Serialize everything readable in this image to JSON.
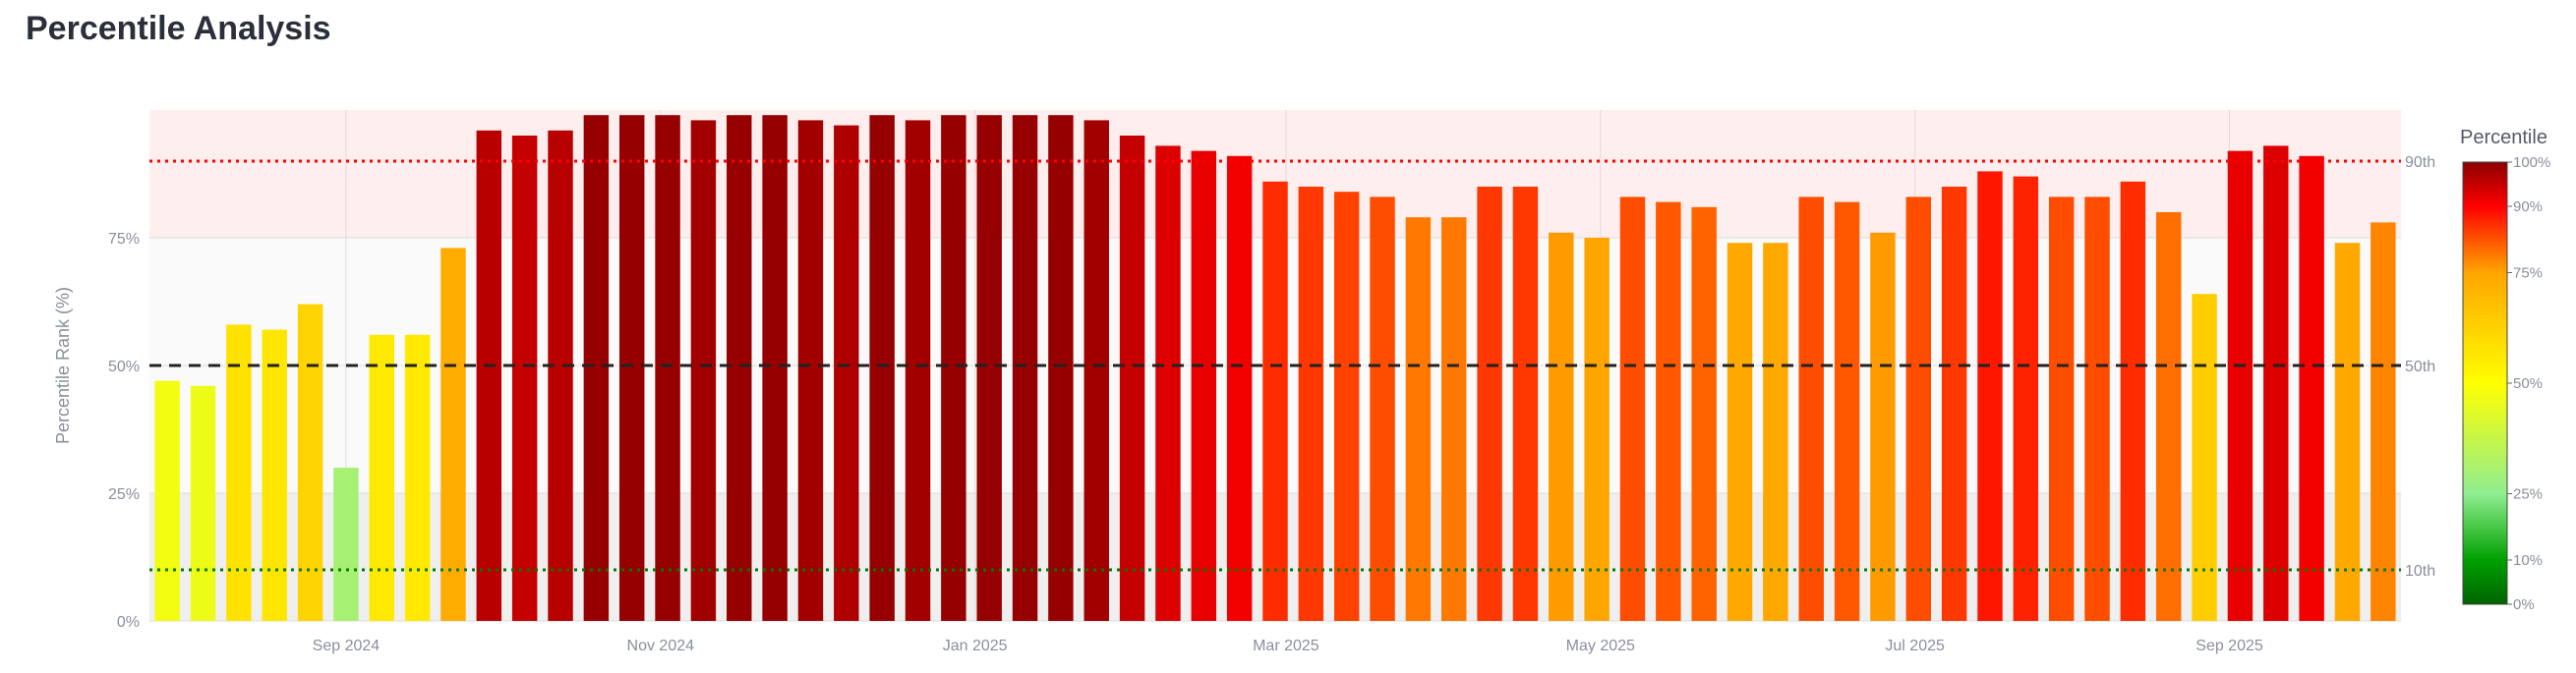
{
  "page": {
    "title": "Percentile Analysis"
  },
  "chart_data": {
    "type": "bar",
    "title": "Percentile Analysis",
    "xlabel": "",
    "ylabel": "Percentile Rank (%)",
    "ylim": [
      0,
      100
    ],
    "y_ticks": [
      0,
      25,
      50,
      75
    ],
    "y_tick_labels": [
      "0%",
      "25%",
      "50%",
      "75%"
    ],
    "x_ticks": [
      {
        "label": "Sep 2024",
        "index": 5
      },
      {
        "label": "Nov 2024",
        "index": 13.8
      },
      {
        "label": "Jan 2025",
        "index": 22.6
      },
      {
        "label": "Mar 2025",
        "index": 31.3
      },
      {
        "label": "May 2025",
        "index": 40.1
      },
      {
        "label": "Jul 2025",
        "index": 48.9
      },
      {
        "label": "Sep 2025",
        "index": 57.7
      }
    ],
    "values": [
      47,
      46,
      58,
      57,
      62,
      30,
      56,
      56,
      73,
      96,
      95,
      96,
      99,
      99,
      99,
      98,
      99,
      99,
      98,
      97,
      99,
      98,
      99,
      99,
      99,
      99,
      98,
      95,
      93,
      92,
      91,
      86,
      85,
      84,
      83,
      79,
      79,
      85,
      85,
      76,
      75,
      83,
      82,
      81,
      74,
      74,
      83,
      82,
      76,
      83,
      85,
      88,
      87,
      83,
      83,
      86,
      80,
      64,
      92,
      93,
      91,
      74,
      78
    ],
    "reference_lines": [
      {
        "label": "90th",
        "value": 90,
        "color": "#ff0000",
        "style": "dotted"
      },
      {
        "label": "50th",
        "value": 50,
        "color": "#222222",
        "style": "dashed"
      },
      {
        "label": "10th",
        "value": 10,
        "color": "#007a00",
        "style": "dotted"
      }
    ],
    "bands": [
      {
        "from": 75,
        "to": 100,
        "color": "#ffeeee"
      },
      {
        "from": 0,
        "to": 25,
        "color": "#efefef"
      }
    ],
    "grid": true,
    "legend": "none",
    "colorbar": {
      "title": "Percentile",
      "ticks": [
        {
          "value": 0,
          "label": "0%"
        },
        {
          "value": 10,
          "label": "10%"
        },
        {
          "value": 25,
          "label": "25%"
        },
        {
          "value": 50,
          "label": "50%"
        },
        {
          "value": 75,
          "label": "75%"
        },
        {
          "value": 90,
          "label": "90%"
        },
        {
          "value": 100,
          "label": "100%"
        }
      ],
      "stops": [
        {
          "value": 0,
          "color": "#006400"
        },
        {
          "value": 10,
          "color": "#00a000"
        },
        {
          "value": 25,
          "color": "#90ee90"
        },
        {
          "value": 50,
          "color": "#ffff00"
        },
        {
          "value": 75,
          "color": "#ffa500"
        },
        {
          "value": 90,
          "color": "#ff0000"
        },
        {
          "value": 100,
          "color": "#8b0000"
        }
      ]
    }
  }
}
